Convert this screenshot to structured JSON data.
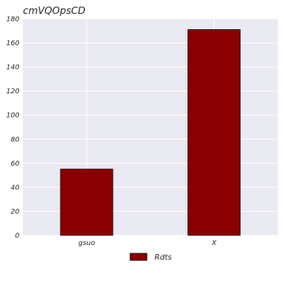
{
  "chart_data": {
    "type": "bar",
    "title": "cmVQOpsCD",
    "xlabel": "",
    "ylabel": "",
    "categories": [
      "gsuo",
      "X"
    ],
    "series": [
      {
        "name": "Rdts",
        "values": [
          55,
          171
        ],
        "color": "#8b0000"
      }
    ],
    "ylim": [
      0,
      180
    ],
    "yticks": [
      0,
      20,
      40,
      60,
      80,
      100,
      120,
      140,
      160,
      180
    ],
    "grid": true,
    "legend_position": "bottom-center",
    "plot_background": "#e9e9f1",
    "grid_color": "#ffffff",
    "bar_edge_color": "#1a0000"
  }
}
